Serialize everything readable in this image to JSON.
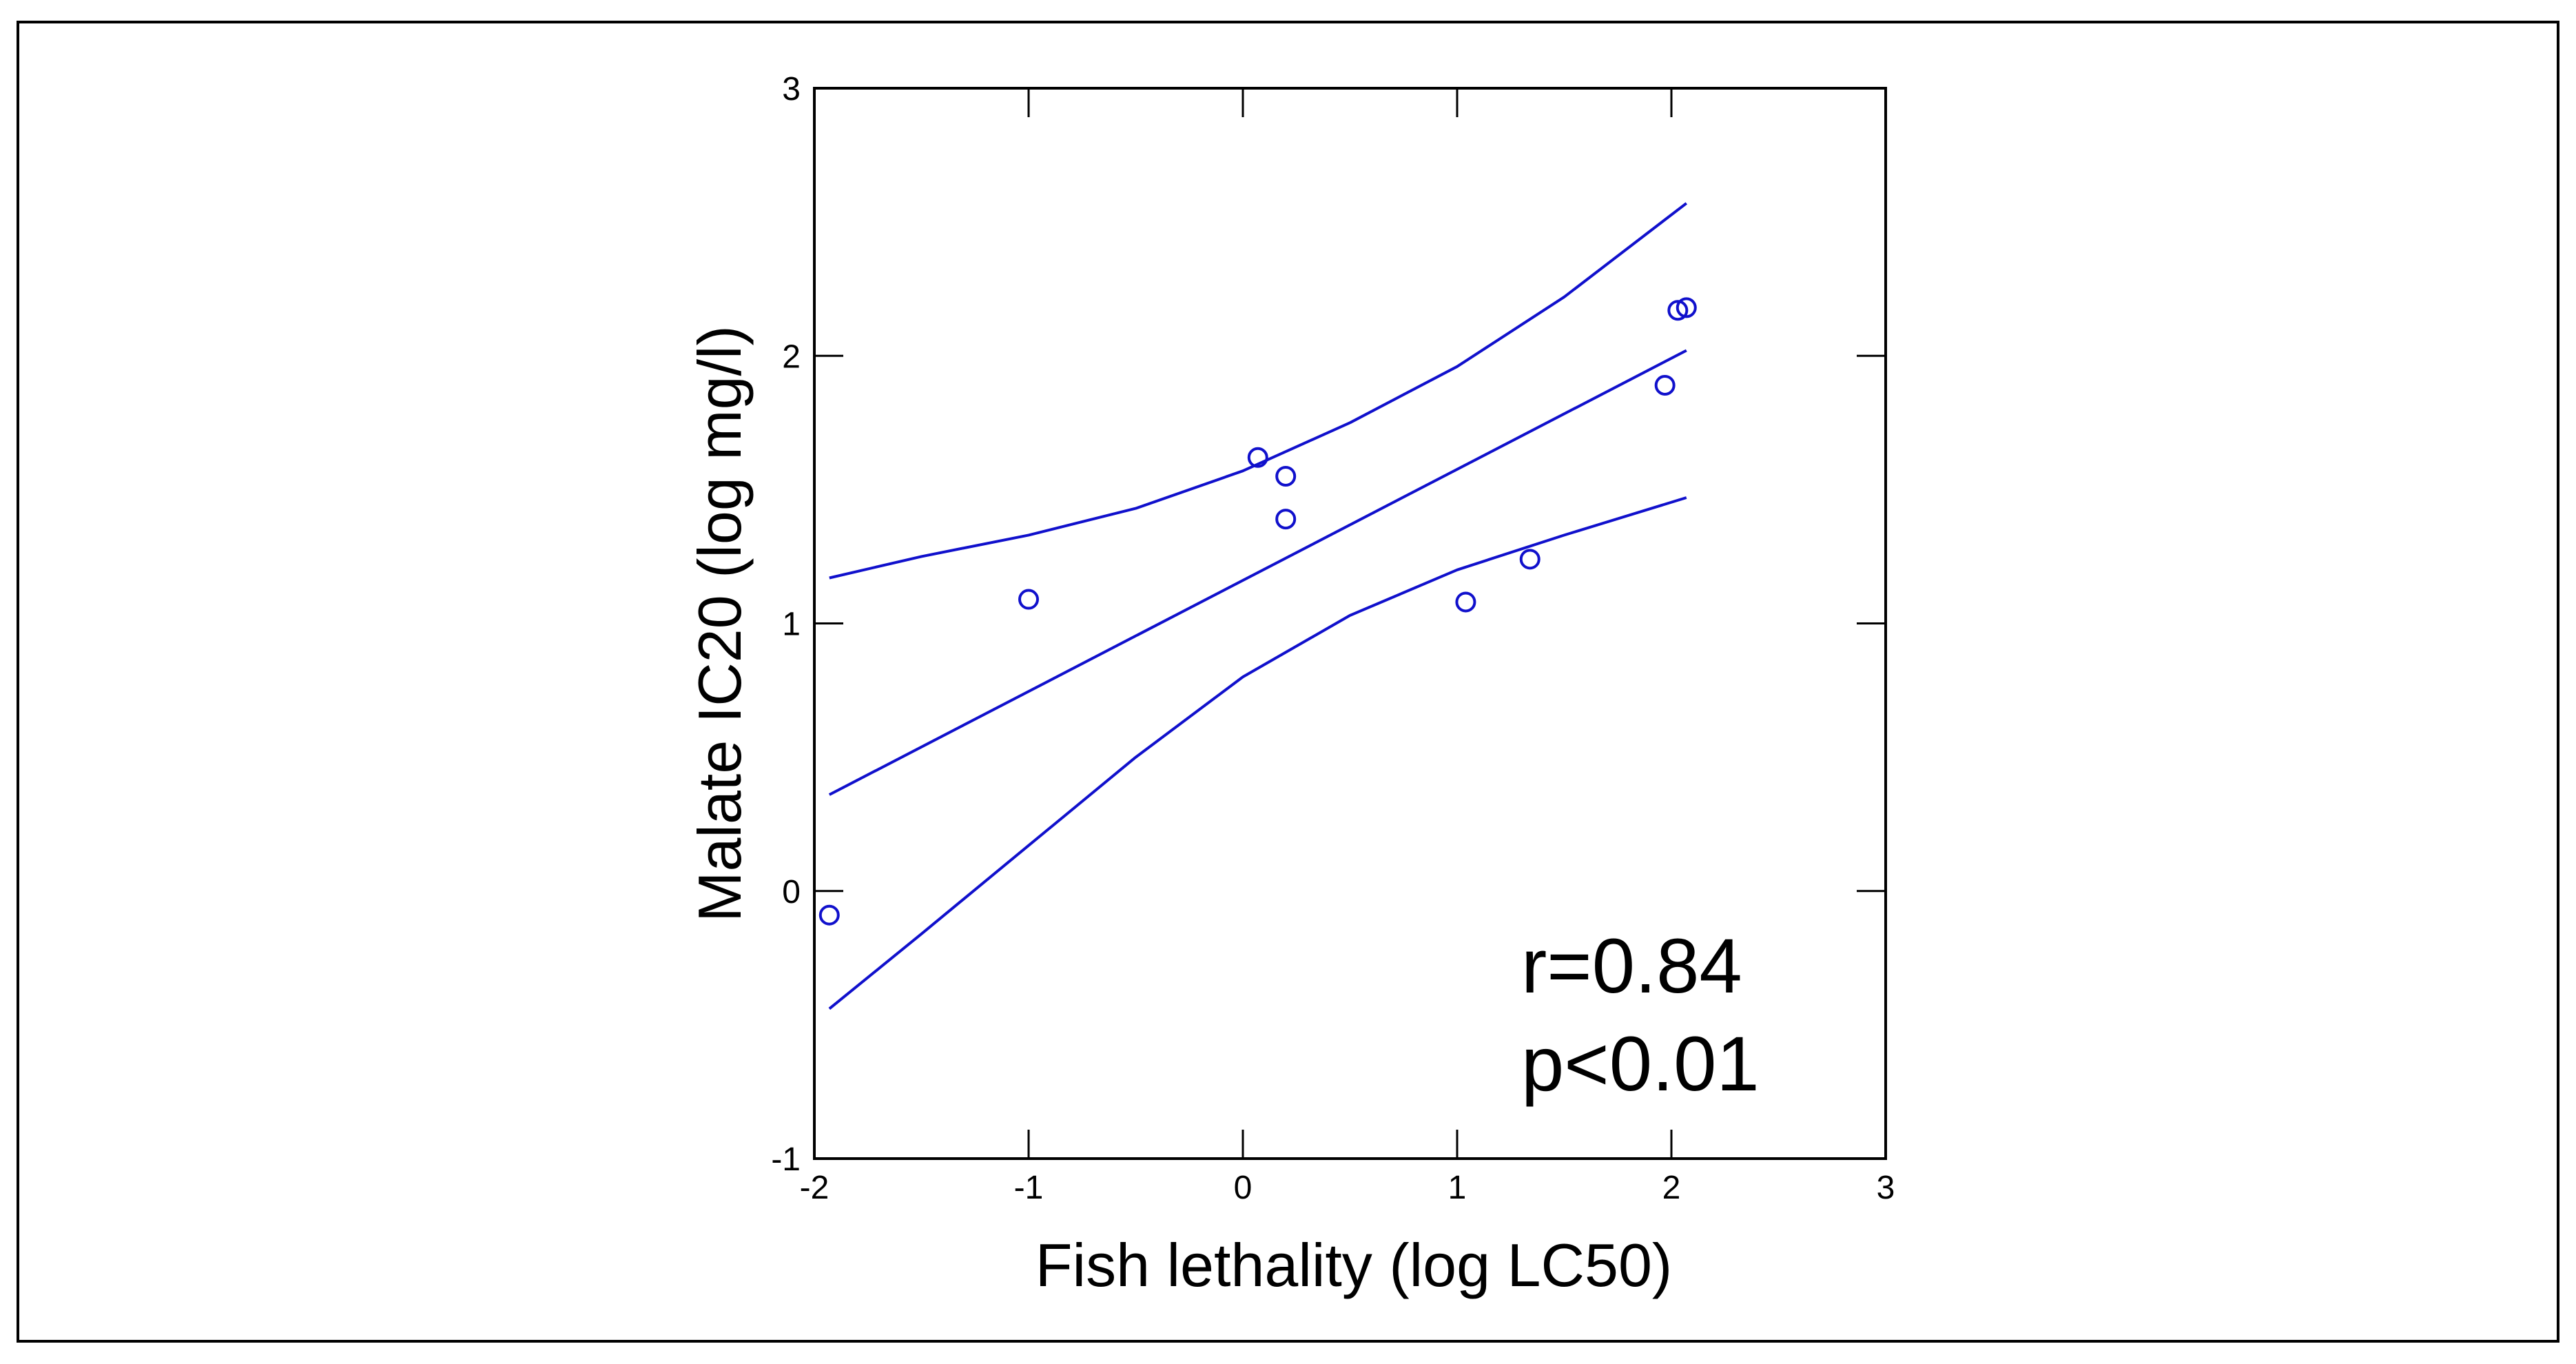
{
  "chart_data": {
    "type": "scatter",
    "xlabel": "Fish lethality (log LC50)",
    "ylabel": "Malate IC20 (log mg/l)",
    "xlim": [
      -2,
      3
    ],
    "ylim": [
      -1,
      3
    ],
    "xticks": [
      -2,
      -1,
      0,
      1,
      2,
      3
    ],
    "yticks": [
      -1,
      0,
      1,
      2,
      3
    ],
    "xtick_labels": [
      "-2",
      "-1",
      "0",
      "1",
      "2",
      "3"
    ],
    "ytick_labels": [
      "-1",
      "0",
      "1",
      "2",
      "3"
    ],
    "colors": {
      "series": "#1010cc",
      "axes": "#000000",
      "frame": "#000000"
    },
    "points": {
      "name": "observations",
      "x": [
        -1.93,
        -1.0,
        0.07,
        0.2,
        0.2,
        1.04,
        1.34,
        1.97,
        2.03,
        2.07
      ],
      "y": [
        -0.09,
        1.09,
        1.62,
        1.55,
        1.39,
        1.08,
        1.24,
        1.89,
        2.17,
        2.18
      ]
    },
    "fit_lines": [
      {
        "name": "regression-line",
        "x": [
          -1.93,
          2.07
        ],
        "y": [
          0.36,
          2.02
        ]
      },
      {
        "name": "upper-confidence-band",
        "x": [
          -1.93,
          -1.5,
          -1.0,
          -0.5,
          0.0,
          0.5,
          1.0,
          1.5,
          2.07
        ],
        "y": [
          1.17,
          1.25,
          1.33,
          1.43,
          1.57,
          1.75,
          1.96,
          2.22,
          2.57
        ]
      },
      {
        "name": "lower-confidence-band",
        "x": [
          -1.93,
          -1.5,
          -1.0,
          -0.5,
          0.0,
          0.5,
          1.0,
          1.5,
          2.07
        ],
        "y": [
          -0.44,
          -0.16,
          0.17,
          0.5,
          0.8,
          1.03,
          1.2,
          1.33,
          1.47
        ]
      }
    ],
    "annotations": [
      "r=0.84",
      "p<0.01"
    ]
  }
}
